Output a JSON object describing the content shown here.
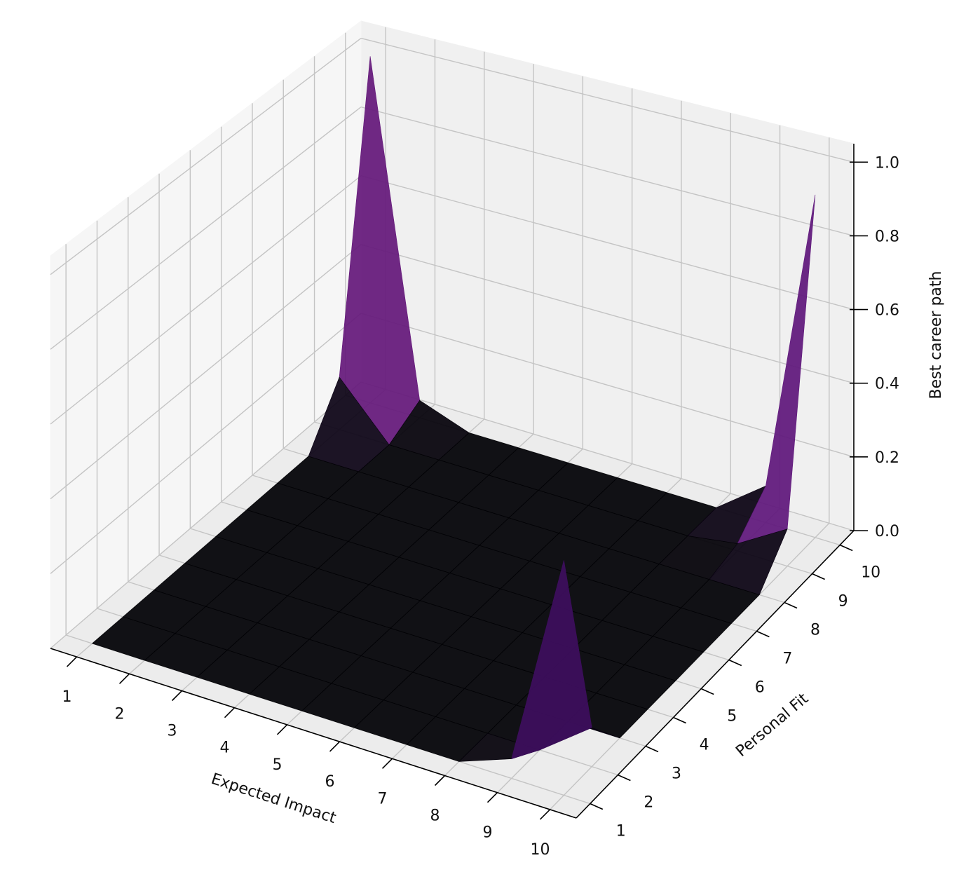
{
  "chart_data": {
    "type": "surface3d",
    "xlabel": "Expected Impact",
    "ylabel": "Personal Fit",
    "zlabel": "Best career path",
    "colormap": "magma",
    "x": [
      1,
      2,
      3,
      4,
      5,
      6,
      7,
      8,
      9,
      10
    ],
    "y": [
      1,
      2,
      3,
      4,
      5,
      6,
      7,
      8,
      9,
      10
    ],
    "z": [
      [
        0,
        0,
        0,
        0,
        0,
        0,
        0,
        0,
        0.05,
        0.6
      ],
      [
        0,
        0,
        0,
        0,
        0,
        0,
        0,
        0,
        0,
        0.1
      ],
      [
        0,
        0,
        0,
        0,
        0,
        0,
        0,
        0,
        0,
        0
      ],
      [
        0,
        0,
        0,
        0,
        0,
        0,
        0,
        0,
        0,
        0
      ],
      [
        0,
        0,
        0,
        0,
        0,
        0,
        0,
        0,
        0,
        0
      ],
      [
        0,
        0,
        0,
        0,
        0,
        0,
        0,
        0,
        0,
        0
      ],
      [
        0,
        0,
        0,
        0,
        0,
        0,
        0,
        0,
        0,
        0
      ],
      [
        0,
        0,
        0,
        0,
        0,
        0,
        0,
        0,
        0,
        0
      ],
      [
        0.15,
        0,
        0,
        0,
        0,
        0,
        0,
        0,
        0.02,
        0.1
      ],
      [
        1.0,
        0.05,
        0,
        0,
        0,
        0,
        0,
        0,
        0.1,
        0.93
      ]
    ],
    "xlim": [
      0.5,
      10.5
    ],
    "ylim": [
      0.5,
      10.5
    ],
    "zlim": [
      0,
      1.05
    ],
    "xticks": [
      1,
      2,
      3,
      4,
      5,
      6,
      7,
      8,
      9,
      10
    ],
    "yticks": [
      1,
      2,
      3,
      4,
      5,
      6,
      7,
      8,
      9,
      10
    ],
    "zticks": [
      {
        "value": 0,
        "label": "0.0"
      },
      0.2,
      0.4,
      0.6,
      0.8,
      {
        "value": 1,
        "label": "1.0"
      }
    ],
    "grid": true
  }
}
